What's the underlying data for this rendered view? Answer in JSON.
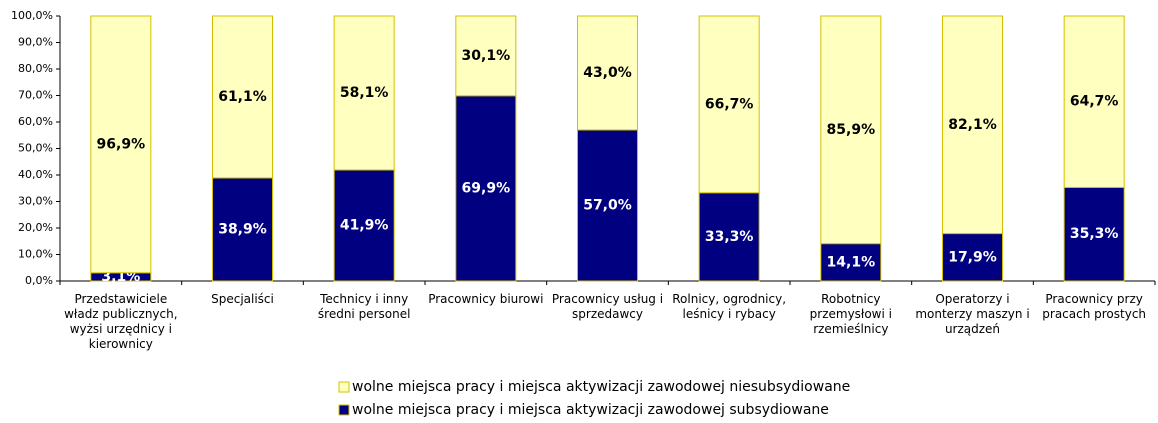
{
  "chart_data": {
    "type": "stacked_bar",
    "categories": [
      "Przedstawiciele władz publicznych, wyżsi urzędnicy i kierownicy",
      "Specjaliści",
      "Technicy i inny średni personel",
      "Pracownicy biurowi",
      "Pracownicy usług i sprzedawcy",
      "Rolnicy, ogrodnicy, leśnicy i rybacy",
      "Robotnicy przemysłowi i rzemieślnicy",
      "Operatorzy i monterzy maszyn i urządzeń",
      "Pracownicy przy pracach prostych"
    ],
    "series": [
      {
        "name": "wolne miejsca pracy i miejsca aktywizacji zawodowej niesubsydiowane",
        "color": "#ffffc0",
        "edge": "#d4c000",
        "label_color": "#000000",
        "values": [
          96.9,
          61.1,
          58.1,
          30.1,
          43.0,
          66.7,
          85.9,
          82.1,
          64.7
        ],
        "value_labels": [
          "96,9%",
          "61,1%",
          "58,1%",
          "30,1%",
          "43,0%",
          "66,7%",
          "85,9%",
          "82,1%",
          "64,7%"
        ]
      },
      {
        "name": "wolne miejsca pracy i miejsca aktywizacji zawodowej subsydiowane",
        "color": "#000080",
        "edge": "#d4c000",
        "label_color": "#ffffff",
        "values": [
          3.1,
          38.9,
          41.9,
          69.9,
          57.0,
          33.3,
          14.1,
          17.9,
          35.3
        ],
        "value_labels": [
          "3,1%",
          "38,9%",
          "41,9%",
          "69,9%",
          "57,0%",
          "33,3%",
          "14,1%",
          "17,9%",
          "35,3%"
        ]
      }
    ],
    "ylim": [
      0,
      100
    ],
    "yticks": [
      {
        "value": 0,
        "label": "0,0%"
      },
      {
        "value": 10,
        "label": "10,0%"
      },
      {
        "value": 20,
        "label": "20,0%"
      },
      {
        "value": 30,
        "label": "30,0%"
      },
      {
        "value": 40,
        "label": "40,0%"
      },
      {
        "value": 50,
        "label": "50,0%"
      },
      {
        "value": 60,
        "label": "60,0%"
      },
      {
        "value": 70,
        "label": "70,0%"
      },
      {
        "value": 80,
        "label": "80,0%"
      },
      {
        "value": 90,
        "label": "90,0%"
      },
      {
        "value": 100,
        "label": "100,0%"
      }
    ],
    "grid": false
  }
}
